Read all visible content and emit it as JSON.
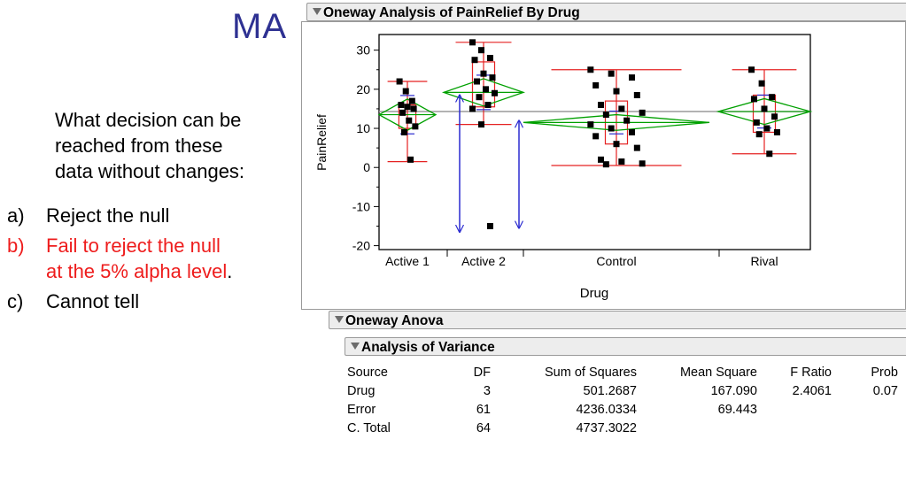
{
  "slide": {
    "title": "MA",
    "question": "What decision can be\nreached from these\ndata without changes:",
    "options": [
      {
        "letter": "a)",
        "text": "Reject the null",
        "correct": false
      },
      {
        "letter": "b)",
        "text": "Fail to reject  the null\nat the 5% alpha level",
        "trail": ".",
        "correct": true
      },
      {
        "letter": "c)",
        "text": "Cannot tell",
        "correct": false
      }
    ]
  },
  "oneway": {
    "header": "Oneway Analysis of PainRelief By Drug"
  },
  "chart_data": {
    "type": "scatter",
    "ylabel": "PainRelief",
    "xlabel": "Drug",
    "ylim": [
      -21,
      34
    ],
    "yticks": [
      30,
      20,
      10,
      0,
      -10,
      -20
    ],
    "grand_mean": 14.3,
    "categories": [
      "Active 1",
      "Active 2",
      "Control",
      "Rival"
    ],
    "groups": [
      {
        "name": "Active 1",
        "mean": 13.5,
        "ci": [
          9.5,
          17.5
        ],
        "box": [
          10,
          16
        ],
        "whiskers": [
          1.5,
          22
        ],
        "points": [
          22,
          19.5,
          17,
          16,
          15.5,
          15,
          14,
          12,
          10.5,
          9,
          2
        ]
      },
      {
        "name": "Active 2",
        "mean": 19.2,
        "ci": [
          15.7,
          22.7
        ],
        "box": [
          15.5,
          27
        ],
        "whiskers": [
          11,
          32
        ],
        "points": [
          32,
          30,
          28,
          27.5,
          24,
          23,
          22,
          20,
          19,
          18,
          16,
          15,
          11,
          -15
        ]
      },
      {
        "name": "Control",
        "mean": 11.5,
        "ci": [
          9.5,
          13.5
        ],
        "box": [
          6,
          17
        ],
        "whiskers": [
          0.5,
          25
        ],
        "points": [
          25,
          24,
          23,
          21,
          19.5,
          18.5,
          16,
          15,
          14,
          13.5,
          12,
          11,
          10,
          9,
          8,
          6,
          5,
          2,
          1.5,
          1,
          0.8
        ]
      },
      {
        "name": "Rival",
        "mean": 14.3,
        "ci": [
          11,
          17.6
        ],
        "box": [
          9,
          18.5
        ],
        "whiskers": [
          3.5,
          25
        ],
        "points": [
          25,
          21.5,
          18,
          17.5,
          15,
          13,
          11.5,
          10,
          9,
          8.5,
          3.5
        ]
      }
    ],
    "annotations": [
      {
        "type": "double-arrow",
        "group": "Active 2",
        "y_top": 18.5,
        "y_bottom": -16.5
      },
      {
        "type": "double-arrow",
        "group": "Control",
        "y_top": 12,
        "y_bottom": -15.5
      }
    ],
    "colors": {
      "box": "#e52222",
      "diamond": "#00a000",
      "means": "#2a2ad0",
      "arrows": "#2a2ad0",
      "points": "#000000",
      "grand_mean": "#9a9a9a"
    }
  },
  "anova": {
    "header": "Oneway Anova",
    "sub_header": "Analysis of Variance",
    "columns": [
      "Source",
      "DF",
      "Sum of Squares",
      "Mean Square",
      "F Ratio",
      "Prob"
    ],
    "rows": [
      [
        "Drug",
        "3",
        "501.2687",
        "167.090",
        "2.4061",
        "0.07"
      ],
      [
        "Error",
        "61",
        "4236.0334",
        "69.443",
        "",
        ""
      ],
      [
        "C. Total",
        "64",
        "4737.3022",
        "",
        "",
        ""
      ]
    ]
  }
}
